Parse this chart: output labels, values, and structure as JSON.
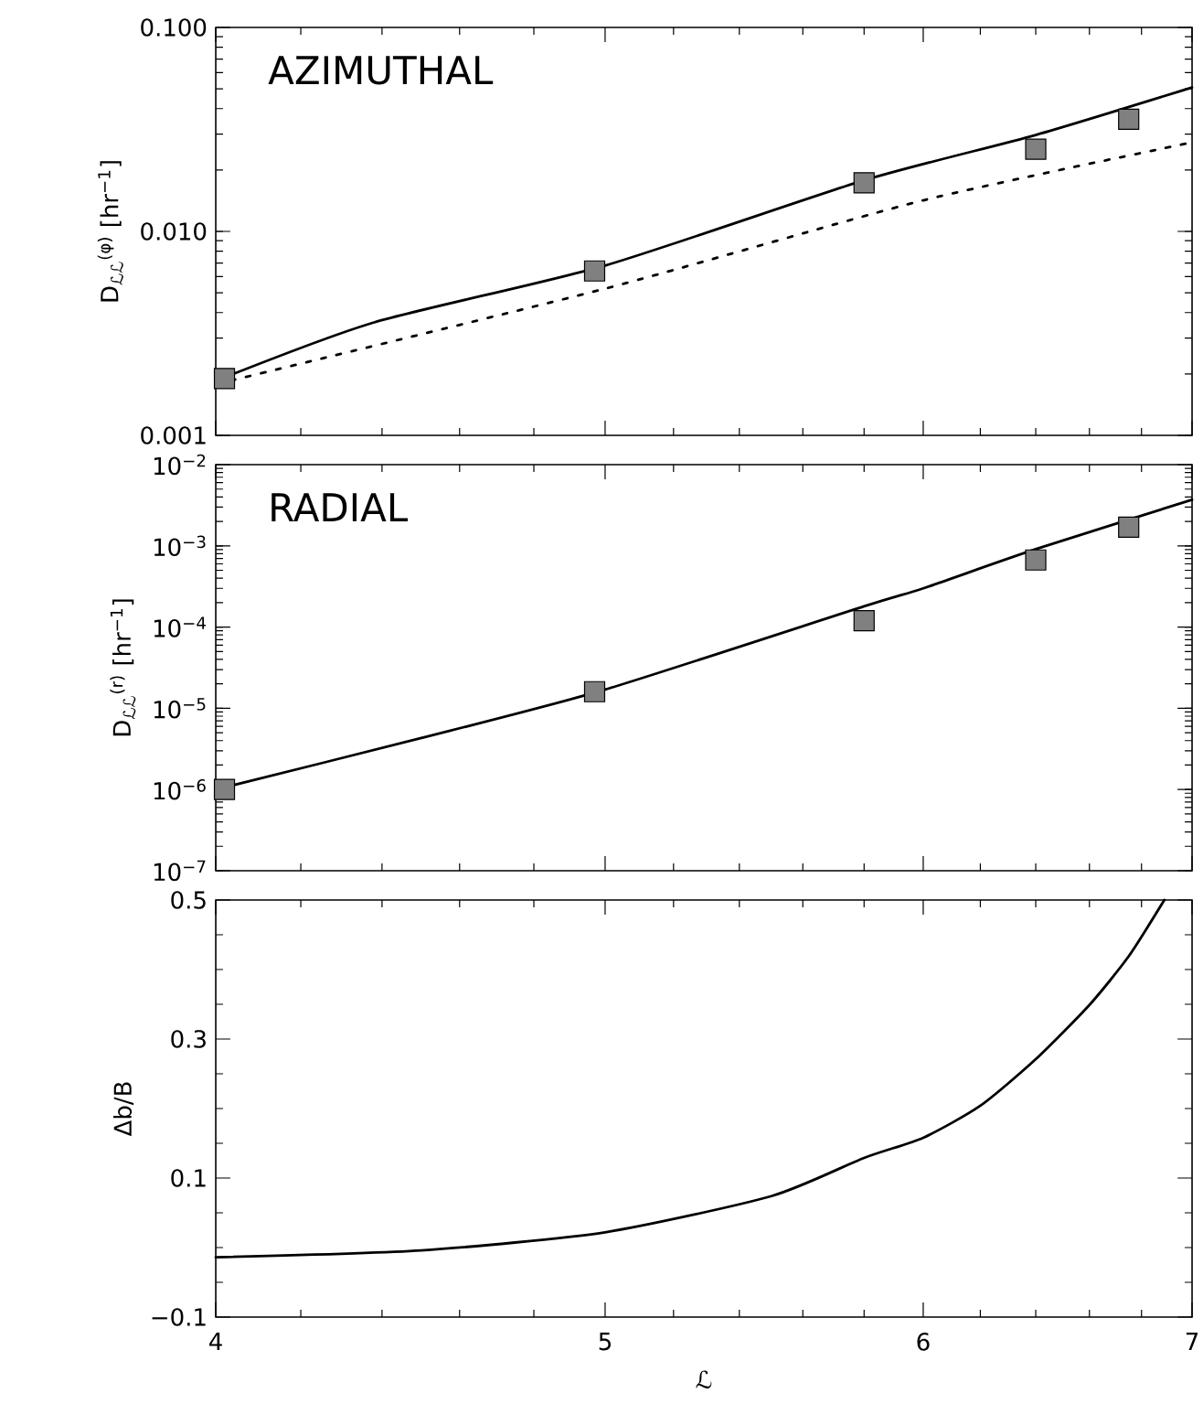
{
  "chart_data": [
    {
      "type": "line",
      "annotations": [
        "AZIMUTHAL"
      ],
      "ylabel": "D$_{ℒℒ}$$^{(φ)}$  [hr$^{−1}$]",
      "log": "xy",
      "xlim": [
        4,
        7
      ],
      "ylim": [
        0.001,
        0.1
      ],
      "xticks": [
        4,
        {
          "value": 4.2,
          "label": null
        },
        {
          "value": 4.4,
          "label": null
        },
        {
          "value": 4.6,
          "label": null
        },
        {
          "value": 4.8,
          "label": null
        },
        5,
        {
          "value": 5.2,
          "label": null
        },
        {
          "value": 5.4,
          "label": null
        },
        {
          "value": 5.6,
          "label": null
        },
        {
          "value": 5.8,
          "label": null
        },
        6,
        {
          "value": 6.2,
          "label": null
        },
        {
          "value": 6.4,
          "label": null
        },
        {
          "value": 6.6,
          "label": null
        },
        {
          "value": 6.8,
          "label": null
        },
        7
      ],
      "yticks": [
        {
          "value": 0.001,
          "label": "0.001"
        },
        {
          "value": 0.01,
          "label": "0.010"
        },
        {
          "value": 0.1,
          "label": "0.100"
        }
      ],
      "tick_labels": "y",
      "series": [
        {
          "type": "line",
          "color": "#000000",
          "line_style": "solid",
          "x": [
            4,
            4.38,
            5,
            5.8,
            6.4,
            7
          ],
          "values": [
            0.00185,
            0.00358,
            0.0068,
            0.0178,
            0.0297,
            0.0508
          ]
        },
        {
          "type": "line",
          "color": "#000000",
          "line_style": "dotted",
          "x": [
            4,
            5,
            6,
            7
          ],
          "values": [
            0.00178,
            0.00524,
            0.0142,
            0.0273
          ]
        },
        {
          "type": "scatter",
          "color": "#808080",
          "marker": "square",
          "x": [
            4.02,
            4.97,
            5.8,
            6.4,
            6.75
          ],
          "values": [
            0.0019,
            0.0064,
            0.0173,
            0.0253,
            0.0355
          ]
        }
      ]
    },
    {
      "type": "line",
      "annotations": [
        "RADIAL"
      ],
      "ylabel": "D$_{ℒℒ}$$^{(r)}$  [hr$^{−1}$]",
      "log": "xy",
      "xlim": [
        4,
        7
      ],
      "ylim": [
        1e-07,
        0.01
      ],
      "xticks": [
        4,
        {
          "value": 4.2,
          "label": null
        },
        {
          "value": 4.4,
          "label": null
        },
        {
          "value": 4.6,
          "label": null
        },
        {
          "value": 4.8,
          "label": null
        },
        5,
        {
          "value": 5.2,
          "label": null
        },
        {
          "value": 5.4,
          "label": null
        },
        {
          "value": 5.6,
          "label": null
        },
        {
          "value": 5.8,
          "label": null
        },
        6,
        {
          "value": 6.2,
          "label": null
        },
        {
          "value": 6.4,
          "label": null
        },
        {
          "value": 6.6,
          "label": null
        },
        {
          "value": 6.8,
          "label": null
        },
        7
      ],
      "yticks": [
        {
          "value": 1e-07,
          "label": "10$^{−7}$"
        },
        {
          "value": 1e-06,
          "label": "10$^{−6}$"
        },
        {
          "value": 1e-05,
          "label": "10$^{−5}$"
        },
        {
          "value": 0.0001,
          "label": "10$^{−4}$"
        },
        {
          "value": 0.001,
          "label": "10$^{−3}$"
        },
        {
          "value": 0.01,
          "label": "10$^{−2}$"
        }
      ],
      "tick_labels": "y",
      "series": [
        {
          "type": "line",
          "color": "#000000",
          "line_style": "solid",
          "x": [
            4,
            4.5,
            5,
            5.8,
            6,
            6.4,
            7
          ],
          "values": [
            1e-06,
            4.3e-06,
            1.7e-05,
            0.00018,
            0.0003,
            0.00091,
            0.0037
          ]
        },
        {
          "type": "scatter",
          "color": "#808080",
          "marker": "square",
          "x": [
            4.02,
            4.97,
            5.8,
            6.4,
            6.75
          ],
          "values": [
            1e-06,
            1.6e-05,
            0.00012,
            0.00067,
            0.0017
          ]
        }
      ]
    },
    {
      "type": "line",
      "xlabel": "ℒ",
      "ylabel": "Δb/B",
      "log": "x",
      "xlim": [
        4,
        7
      ],
      "ylim": [
        -0.1,
        0.5
      ],
      "xticks": [
        4,
        {
          "value": 4.2,
          "label": null
        },
        {
          "value": 4.4,
          "label": null
        },
        {
          "value": 4.6,
          "label": null
        },
        {
          "value": 4.8,
          "label": null
        },
        5,
        {
          "value": 5.2,
          "label": null
        },
        {
          "value": 5.4,
          "label": null
        },
        {
          "value": 5.6,
          "label": null
        },
        {
          "value": 5.8,
          "label": null
        },
        6,
        {
          "value": 6.2,
          "label": null
        },
        {
          "value": 6.4,
          "label": null
        },
        {
          "value": 6.6,
          "label": null
        },
        {
          "value": 6.8,
          "label": null
        },
        7
      ],
      "yticks": [
        {
          "value": -0.1,
          "label": "−0.1"
        },
        0.1,
        0.3,
        0.5
      ],
      "series": [
        {
          "type": "line",
          "color": "#000000",
          "line_style": "solid",
          "x": [
            4,
            4.5,
            5,
            5.5,
            5.8,
            6,
            6.2,
            6.4,
            6.6,
            6.75,
            6.89
          ],
          "values": [
            -0.014,
            -0.004,
            0.022,
            0.074,
            0.129,
            0.158,
            0.204,
            0.271,
            0.349,
            0.419,
            0.5
          ]
        }
      ]
    }
  ]
}
